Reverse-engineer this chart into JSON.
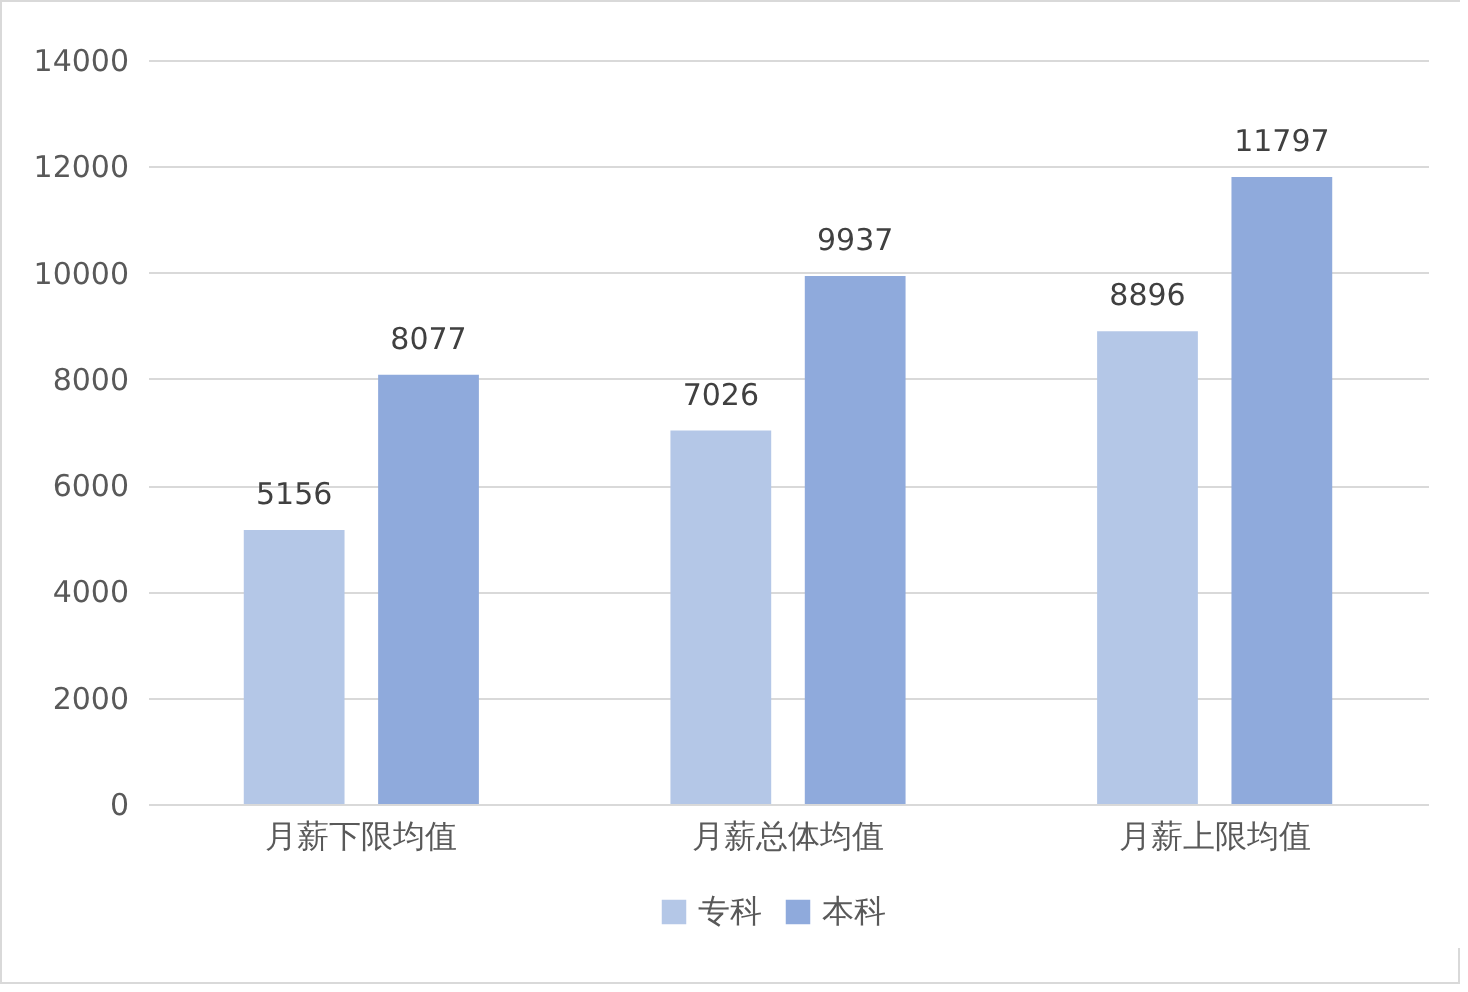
{
  "chart_data": {
    "type": "bar",
    "categories": [
      "月薪下限均值",
      "月薪总体均值",
      "月薪上限均值"
    ],
    "series": [
      {
        "name": "专科",
        "color": "#b4c7e7",
        "values": [
          5156,
          7026,
          8896
        ]
      },
      {
        "name": "本科",
        "color": "#8faadc",
        "values": [
          8077,
          9937,
          11797
        ]
      }
    ],
    "ylim": [
      0,
      14000
    ],
    "yticks": [
      0,
      2000,
      4000,
      6000,
      8000,
      10000,
      12000,
      14000
    ],
    "grid": "y",
    "legend": "bottom",
    "data_labels": true
  }
}
